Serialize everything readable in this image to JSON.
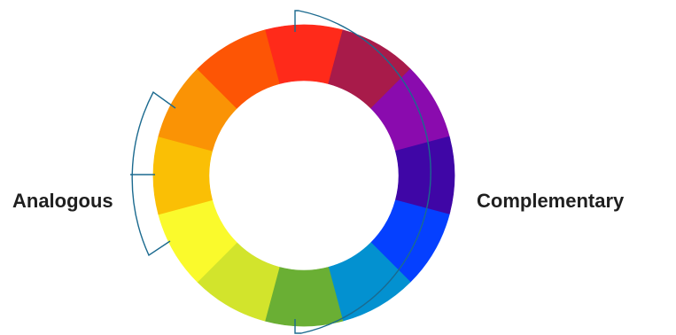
{
  "labels": {
    "analogous": "Analogous",
    "complementary": "Complementary"
  },
  "wheel": {
    "segment_colors": [
      "#FF2A1A",
      "#A81B4A",
      "#8A0BAE",
      "#3F06A6",
      "#0540FF",
      "#0391D0",
      "#6AAF34",
      "#D2E42C",
      "#FAFA2C",
      "#FABF05",
      "#FA9305",
      "#FD5505"
    ]
  },
  "bracket_color": "#1B6A8F"
}
